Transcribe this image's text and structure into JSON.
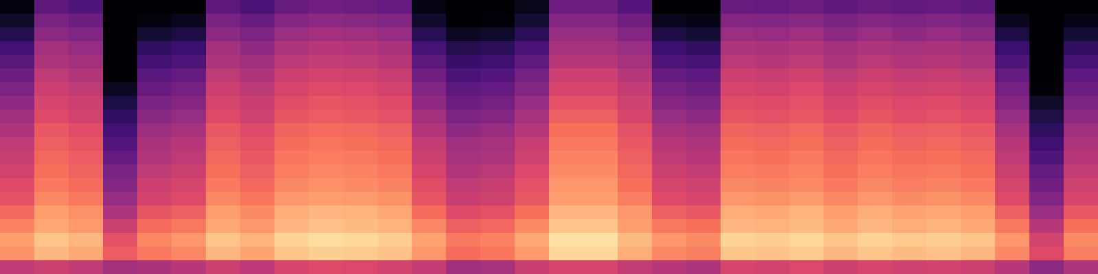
{
  "chart_data": {
    "type": "heatmap",
    "color": "magma",
    "tick_labels": false,
    "grid": false,
    "zlim": [
      0,
      100
    ],
    "cells": [
      [
        52,
        55,
        52,
        45,
        47,
        50,
        55,
        51,
        58,
        60,
        59,
        57,
        53,
        44,
        46,
        54,
        58,
        58,
        53,
        50,
        48,
        58,
        57,
        59,
        55,
        58,
        56,
        57,
        55,
        50,
        40,
        48
      ],
      [
        77,
        85,
        82,
        65,
        72,
        75,
        85,
        81,
        88,
        90,
        89,
        87,
        78,
        69,
        71,
        79,
        92,
        92,
        83,
        75,
        73,
        88,
        87,
        89,
        85,
        88,
        86,
        87,
        85,
        75,
        60,
        73
      ],
      [
        80,
        88,
        85,
        62,
        75,
        78,
        88,
        84,
        91,
        93,
        92,
        90,
        81,
        72,
        74,
        82,
        94,
        94,
        86,
        78,
        76,
        91,
        90,
        92,
        88,
        91,
        89,
        90,
        88,
        78,
        57,
        76
      ],
      [
        74,
        82,
        79,
        55,
        69,
        72,
        82,
        78,
        85,
        87,
        86,
        84,
        75,
        66,
        68,
        76,
        88,
        88,
        80,
        72,
        70,
        85,
        84,
        86,
        82,
        85,
        83,
        84,
        82,
        72,
        50,
        70
      ],
      [
        68,
        80,
        77,
        48,
        63,
        66,
        80,
        76,
        83,
        85,
        84,
        82,
        69,
        60,
        62,
        70,
        85,
        85,
        78,
        66,
        64,
        83,
        82,
        84,
        80,
        83,
        81,
        82,
        80,
        66,
        43,
        64
      ],
      [
        62,
        75,
        72,
        42,
        57,
        60,
        75,
        71,
        78,
        80,
        79,
        77,
        63,
        54,
        56,
        64,
        80,
        80,
        73,
        60,
        58,
        78,
        77,
        79,
        75,
        78,
        76,
        77,
        75,
        60,
        37,
        58
      ],
      [
        60,
        72,
        69,
        38,
        55,
        58,
        72,
        68,
        75,
        77,
        76,
        74,
        61,
        52,
        54,
        62,
        78,
        78,
        70,
        58,
        56,
        75,
        74,
        76,
        72,
        75,
        73,
        74,
        72,
        58,
        33,
        56
      ],
      [
        57,
        70,
        67,
        35,
        52,
        55,
        70,
        66,
        73,
        75,
        74,
        72,
        58,
        49,
        51,
        59,
        76,
        76,
        68,
        55,
        53,
        73,
        72,
        74,
        70,
        73,
        71,
        72,
        70,
        55,
        30,
        53
      ],
      [
        54,
        68,
        65,
        30,
        49,
        52,
        68,
        64,
        71,
        73,
        72,
        70,
        55,
        46,
        48,
        56,
        74,
        74,
        66,
        52,
        50,
        71,
        70,
        72,
        68,
        71,
        69,
        70,
        68,
        52,
        25,
        50
      ],
      [
        52,
        66,
        63,
        26,
        47,
        50,
        66,
        62,
        69,
        71,
        70,
        68,
        53,
        44,
        46,
        54,
        72,
        72,
        64,
        50,
        48,
        69,
        68,
        70,
        66,
        69,
        67,
        68,
        66,
        50,
        21,
        48
      ],
      [
        48,
        64,
        61,
        22,
        43,
        46,
        64,
        60,
        67,
        69,
        68,
        66,
        49,
        40,
        42,
        50,
        70,
        70,
        62,
        46,
        44,
        67,
        66,
        68,
        64,
        67,
        65,
        66,
        64,
        46,
        17,
        44
      ],
      [
        44,
        60,
        57,
        18,
        39,
        42,
        60,
        56,
        63,
        65,
        64,
        62,
        45,
        36,
        38,
        46,
        66,
        66,
        58,
        42,
        40,
        63,
        62,
        64,
        60,
        63,
        61,
        62,
        60,
        42,
        13,
        40
      ],
      [
        40,
        58,
        55,
        12,
        35,
        38,
        58,
        54,
        61,
        63,
        62,
        60,
        41,
        32,
        34,
        42,
        62,
        62,
        56,
        38,
        36,
        61,
        60,
        62,
        58,
        61,
        59,
        60,
        58,
        38,
        7,
        36
      ],
      [
        36,
        55,
        52,
        6,
        31,
        34,
        55,
        51,
        58,
        60,
        59,
        57,
        37,
        28,
        30,
        38,
        58,
        58,
        53,
        34,
        32,
        58,
        57,
        59,
        55,
        58,
        56,
        57,
        55,
        34,
        1,
        32
      ],
      [
        32,
        52,
        49,
        0,
        27,
        30,
        52,
        48,
        55,
        57,
        56,
        54,
        33,
        24,
        26,
        34,
        55,
        55,
        50,
        30,
        28,
        55,
        54,
        56,
        52,
        55,
        53,
        54,
        52,
        30,
        0,
        28
      ],
      [
        27,
        48,
        45,
        0,
        22,
        25,
        48,
        44,
        51,
        53,
        52,
        50,
        28,
        19,
        21,
        29,
        50,
        50,
        46,
        25,
        23,
        51,
        50,
        52,
        48,
        51,
        49,
        50,
        48,
        25,
        0,
        23
      ],
      [
        22,
        45,
        42,
        0,
        17,
        20,
        45,
        41,
        48,
        50,
        49,
        47,
        23,
        14,
        16,
        24,
        46,
        46,
        43,
        20,
        18,
        48,
        47,
        49,
        45,
        48,
        46,
        47,
        45,
        20,
        0,
        18
      ],
      [
        14,
        40,
        37,
        0,
        9,
        12,
        40,
        36,
        43,
        45,
        44,
        42,
        15,
        6,
        8,
        16,
        42,
        42,
        38,
        12,
        10,
        43,
        42,
        44,
        40,
        43,
        41,
        42,
        40,
        12,
        0,
        10
      ],
      [
        7,
        35,
        32,
        0,
        2,
        5,
        35,
        31,
        38,
        40,
        39,
        37,
        8,
        0,
        1,
        9,
        38,
        38,
        33,
        5,
        3,
        38,
        37,
        39,
        35,
        38,
        36,
        37,
        35,
        5,
        0,
        3
      ],
      [
        2,
        28,
        25,
        0,
        0,
        0,
        28,
        24,
        31,
        33,
        32,
        30,
        3,
        0,
        0,
        4,
        32,
        32,
        26,
        0,
        0,
        31,
        30,
        32,
        28,
        31,
        29,
        30,
        28,
        0,
        0,
        0
      ]
    ]
  }
}
